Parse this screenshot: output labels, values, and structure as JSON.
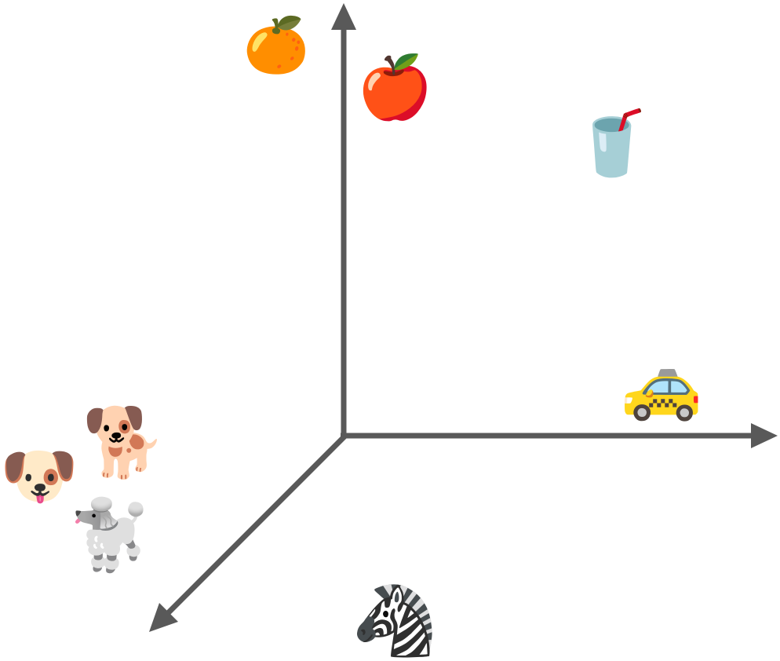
{
  "diagram": {
    "type": "3d-embedding-space",
    "axis_color": "#595959",
    "axes": [
      "up",
      "right",
      "down-left"
    ],
    "items": [
      {
        "id": "orange",
        "glyph": "🍊",
        "icon": "tangerine-icon"
      },
      {
        "id": "apple",
        "glyph": "🍎",
        "icon": "red-apple-icon"
      },
      {
        "id": "drink",
        "glyph": "🥤",
        "icon": "cup-with-straw-icon"
      },
      {
        "id": "taxi",
        "glyph": "🚕",
        "icon": "taxi-icon"
      },
      {
        "id": "dog-face",
        "glyph": "🐶",
        "icon": "dog-face-icon"
      },
      {
        "id": "dog",
        "glyph": "🐕",
        "icon": "dog-icon"
      },
      {
        "id": "poodle",
        "glyph": "🐩",
        "icon": "poodle-icon"
      },
      {
        "id": "zebra",
        "glyph": "🦓",
        "icon": "zebra-icon"
      }
    ]
  }
}
